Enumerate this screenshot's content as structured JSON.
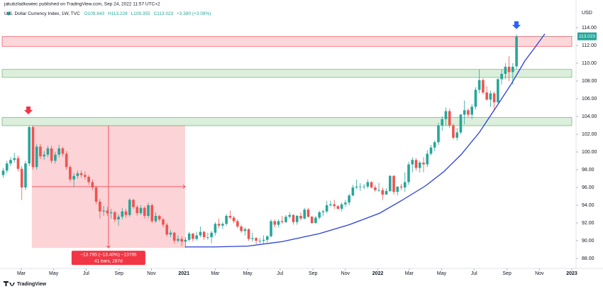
{
  "chart_data": {
    "type": "candlestick",
    "publisher": "jakubzladkowiec published on TradingView.com, Sep 24, 2022 11:57 UTC+2",
    "symbol": "U.S. Dollar Currency Index, 1W, TVC",
    "ohlc_text": {
      "open": "O109.643",
      "high": "H113.228",
      "low": "L109.355",
      "close": "C113.023",
      "change": "+3.380 (+3.08%)"
    },
    "currency": "USD",
    "last_price": {
      "value": 113.023,
      "label": "113.023"
    },
    "brand": "TradingView",
    "up_color": "#26a69a",
    "down_color": "#ef5350",
    "open": [
      97.4,
      97.9,
      98.7,
      99.1,
      99.3,
      98.1,
      96.0,
      98.7,
      102.8,
      98.3,
      100.6,
      99.5,
      99.7,
      100.4,
      99.0,
      99.7,
      100.4,
      99.8,
      98.3,
      96.9,
      97.3,
      97.6,
      97.4,
      97.2,
      96.6,
      96.0,
      94.4,
      93.3,
      93.4,
      93.1,
      93.2,
      92.4,
      92.7,
      93.3,
      92.9,
      94.6,
      93.8,
      93.1,
      93.7,
      92.8,
      94.0,
      92.2,
      92.8,
      92.4,
      91.8,
      90.7,
      90.9,
      90.0,
      90.2,
      89.9,
      90.1,
      90.8,
      90.2,
      90.6,
      91.0,
      90.4,
      90.4,
      90.9,
      91.9,
      91.7,
      91.9,
      92.8,
      92.6,
      92.2,
      91.6,
      91.1,
      91.3,
      90.2,
      90.3,
      90.0,
      90.0,
      90.1,
      90.5,
      92.2,
      91.8,
      92.2,
      92.1,
      92.7,
      92.9,
      92.1,
      92.8,
      92.5,
      93.5,
      92.7,
      92.0,
      92.6,
      93.2,
      93.3,
      94.0,
      94.1,
      93.9,
      93.6,
      94.1,
      94.3,
      95.1,
      96.0,
      96.1,
      96.1,
      96.1,
      96.6,
      96.0,
      95.7,
      95.7,
      95.2,
      95.6,
      97.3,
      95.5,
      96.1,
      96.0,
      96.6,
      98.6,
      99.1,
      98.2,
      98.8,
      98.6,
      99.8,
      100.5,
      101.1,
      103.0,
      103.7,
      104.6,
      103.0,
      101.6,
      102.2,
      104.2,
      104.7,
      104.2,
      105.1,
      107.0,
      108.1,
      106.7,
      105.9,
      106.6,
      105.6,
      108.2,
      108.8,
      109.6,
      109.0,
      109.64
    ],
    "high": [
      98.2,
      99.0,
      99.4,
      99.9,
      99.6,
      98.4,
      99.0,
      103.0,
      103.0,
      100.9,
      100.9,
      100.1,
      100.7,
      100.7,
      100.0,
      100.8,
      100.6,
      100.1,
      98.5,
      97.6,
      97.9,
      97.9,
      97.8,
      97.4,
      96.9,
      96.2,
      94.7,
      93.9,
      93.8,
      93.6,
      93.4,
      93.0,
      93.7,
      93.6,
      94.8,
      94.7,
      94.0,
      94.0,
      93.9,
      94.3,
      94.2,
      93.2,
      92.9,
      92.6,
      92.0,
      91.2,
      91.0,
      90.6,
      90.5,
      90.4,
      91.0,
      90.9,
      91.0,
      91.6,
      91.1,
      90.9,
      91.1,
      92.1,
      92.5,
      92.1,
      93.0,
      93.4,
      92.8,
      92.4,
      91.8,
      91.5,
      91.4,
      90.9,
      90.4,
      90.3,
      90.6,
      90.6,
      92.4,
      92.4,
      92.4,
      92.8,
      92.9,
      93.2,
      93.0,
      92.9,
      93.2,
      93.7,
      93.7,
      92.8,
      92.8,
      93.4,
      93.5,
      94.5,
      94.5,
      94.6,
      94.0,
      94.3,
      94.6,
      95.3,
      96.3,
      96.9,
      96.5,
      96.4,
      96.9,
      96.7,
      96.3,
      96.5,
      96.0,
      95.9,
      97.4,
      97.4,
      96.1,
      96.4,
      97.7,
      98.9,
      99.4,
      99.3,
      99.0,
      99.4,
      100.2,
      100.8,
      101.3,
      103.3,
      104.0,
      105.0,
      104.9,
      103.2,
      102.7,
      104.3,
      105.8,
      104.9,
      105.4,
      107.3,
      109.3,
      108.3,
      107.4,
      106.9,
      106.8,
      108.3,
      109.3,
      110.0,
      110.8,
      110.0,
      113.23
    ],
    "low": [
      97.1,
      97.6,
      98.4,
      98.8,
      97.8,
      94.6,
      95.7,
      98.4,
      98.0,
      98.0,
      99.2,
      99.1,
      99.4,
      98.7,
      98.7,
      99.4,
      99.5,
      98.0,
      96.6,
      96.0,
      97.0,
      97.1,
      96.9,
      96.3,
      95.7,
      94.1,
      92.5,
      92.8,
      92.8,
      92.5,
      92.1,
      91.7,
      92.4,
      92.6,
      92.7,
      93.6,
      92.8,
      92.9,
      92.5,
      92.5,
      92.0,
      92.0,
      92.2,
      91.5,
      90.5,
      90.4,
      89.7,
      89.8,
      89.4,
      89.2,
      89.9,
      89.9,
      90.0,
      90.4,
      90.1,
      90.1,
      89.7,
      90.6,
      91.4,
      91.3,
      91.7,
      92.4,
      92.0,
      91.4,
      90.9,
      90.6,
      90.0,
      89.9,
      89.6,
      89.7,
      89.7,
      89.8,
      90.4,
      91.5,
      91.5,
      91.9,
      92.0,
      92.5,
      91.8,
      91.8,
      92.3,
      92.4,
      92.6,
      91.9,
      91.9,
      92.4,
      92.8,
      93.1,
      93.8,
      93.6,
      93.5,
      93.3,
      93.8,
      94.0,
      95.0,
      95.8,
      95.6,
      95.8,
      95.9,
      95.9,
      95.5,
      95.5,
      94.6,
      95.2,
      95.5,
      95.2,
      95.1,
      95.7,
      95.5,
      96.3,
      97.7,
      97.9,
      97.7,
      97.7,
      98.3,
      99.6,
      100.1,
      100.8,
      102.4,
      103.0,
      102.7,
      101.4,
      101.3,
      102.0,
      103.1,
      103.9,
      103.7,
      104.8,
      106.6,
      106.5,
      105.8,
      105.1,
      104.6,
      105.5,
      107.6,
      108.2,
      108.0,
      107.6,
      109.36
    ],
    "close": [
      97.9,
      98.7,
      99.1,
      99.3,
      98.1,
      96.0,
      98.7,
      102.8,
      98.3,
      100.6,
      99.5,
      99.7,
      100.4,
      99.0,
      99.7,
      100.4,
      99.8,
      98.3,
      96.9,
      97.3,
      97.6,
      97.4,
      97.2,
      96.6,
      96.0,
      94.4,
      93.3,
      93.4,
      93.1,
      93.2,
      92.4,
      92.7,
      93.3,
      92.9,
      94.6,
      93.8,
      93.1,
      93.7,
      92.8,
      94.0,
      92.2,
      92.8,
      92.4,
      91.8,
      90.7,
      90.9,
      90.0,
      90.2,
      89.9,
      90.1,
      90.8,
      90.2,
      90.6,
      91.0,
      90.4,
      90.4,
      90.9,
      91.9,
      91.7,
      91.9,
      92.8,
      92.6,
      92.2,
      91.6,
      91.1,
      91.3,
      90.2,
      90.3,
      90.0,
      90.0,
      90.1,
      90.5,
      92.2,
      91.8,
      92.2,
      92.1,
      92.7,
      92.9,
      92.1,
      92.8,
      92.5,
      93.5,
      92.7,
      92.0,
      92.6,
      93.2,
      93.3,
      94.0,
      94.1,
      93.9,
      93.6,
      94.1,
      94.3,
      95.1,
      96.0,
      96.1,
      96.1,
      96.1,
      96.6,
      96.0,
      95.7,
      95.7,
      95.2,
      95.6,
      97.3,
      95.5,
      96.1,
      96.0,
      96.6,
      98.6,
      99.1,
      98.2,
      98.8,
      98.6,
      99.8,
      100.5,
      101.1,
      103.0,
      103.7,
      104.6,
      103.0,
      101.6,
      102.2,
      104.2,
      104.7,
      104.2,
      105.1,
      107.0,
      108.1,
      106.7,
      105.9,
      106.6,
      105.6,
      108.2,
      108.8,
      109.6,
      109.0,
      109.6,
      113.02
    ],
    "xlim": [
      -0.86,
      154.0
    ],
    "xticks": [
      {
        "value": 4.86,
        "label": "Mar"
      },
      {
        "value": 13.57,
        "label": "May"
      },
      {
        "value": 22.29,
        "label": "Jul"
      },
      {
        "value": 31.14,
        "label": "Sep"
      },
      {
        "value": 39.86,
        "label": "Nov"
      },
      {
        "value": 48.57,
        "label": "2021"
      },
      {
        "value": 57.0,
        "label": "Mar"
      },
      {
        "value": 65.71,
        "label": "May"
      },
      {
        "value": 74.43,
        "label": "Jul"
      },
      {
        "value": 83.29,
        "label": "Sep"
      },
      {
        "value": 92.0,
        "label": "Nov"
      },
      {
        "value": 100.71,
        "label": "2022"
      },
      {
        "value": 109.14,
        "label": "Mar"
      },
      {
        "value": 117.86,
        "label": "May"
      },
      {
        "value": 126.57,
        "label": "Jul"
      },
      {
        "value": 135.43,
        "label": "Sep"
      },
      {
        "value": 144.14,
        "label": "Nov"
      },
      {
        "value": 152.86,
        "label": "2023"
      }
    ],
    "ylim": [
      86.88,
      116.16
    ],
    "yticks": [
      {
        "value": 88,
        "label": "88.00"
      },
      {
        "value": 90,
        "label": "90.00"
      },
      {
        "value": 92,
        "label": "92.00"
      },
      {
        "value": 94,
        "label": "94.00"
      },
      {
        "value": 96,
        "label": "96.00"
      },
      {
        "value": 98,
        "label": "98.00"
      },
      {
        "value": 100,
        "label": "100.00"
      },
      {
        "value": 102,
        "label": "102.00"
      },
      {
        "value": 104,
        "label": "104.00"
      },
      {
        "value": 106,
        "label": "106.00"
      },
      {
        "value": 108,
        "label": "108.00"
      },
      {
        "value": 110,
        "label": "110.00"
      },
      {
        "value": 112,
        "label": "112.00"
      },
      {
        "value": 114,
        "label": "114.00"
      }
    ],
    "zones": [
      {
        "from": 111.9,
        "to": 113.0,
        "color": "#f23645"
      },
      {
        "from": 108.4,
        "to": 109.3,
        "color": "#4caf50"
      },
      {
        "from": 102.96,
        "to": 103.9,
        "color": "#4caf50"
      }
    ],
    "measure": {
      "x_start": 7.7,
      "x_end": 48.9,
      "from": 102.99,
      "to": 89.195,
      "color": "#f23645",
      "label": "−13.795 (−13.40%) −13795",
      "label2": "41 bars, 287d"
    },
    "curve": {
      "color": "#2a3fd6",
      "x": [
        48.9,
        57.0,
        65.9,
        75.0,
        85.0,
        93.0,
        101.2,
        107.0,
        113.6,
        118.5,
        123.1,
        128.0,
        132.6,
        136.5,
        140.3,
        143.0,
        145.6
      ],
      "y": [
        89.3,
        89.3,
        89.4,
        89.9,
        90.8,
        91.8,
        93.1,
        94.5,
        96.2,
        97.8,
        99.7,
        102.2,
        105.1,
        107.6,
        110.3,
        111.8,
        113.3
      ]
    }
  }
}
